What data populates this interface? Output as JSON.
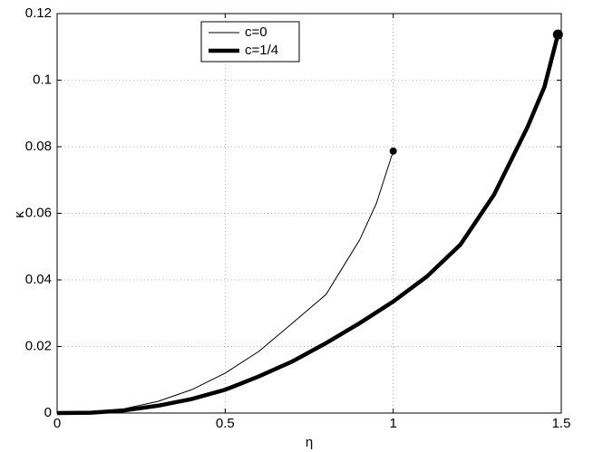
{
  "chart_data": {
    "type": "line",
    "xlabel": "η",
    "ylabel": "κ",
    "xlim": [
      0,
      1.5
    ],
    "ylim": [
      0,
      0.12
    ],
    "xticks": [
      0,
      0.5,
      1,
      1.5
    ],
    "yticks": [
      0,
      0.02,
      0.04,
      0.06,
      0.08,
      0.1,
      0.12
    ],
    "grid": true,
    "legend": "top",
    "series": [
      {
        "name": "c=0",
        "color": "#000000",
        "x": [
          0,
          0.1,
          0.2,
          0.3,
          0.4,
          0.5,
          0.6,
          0.7,
          0.8,
          0.9,
          0.95,
          1.0
        ],
        "values": [
          0,
          0.0002,
          0.0013,
          0.0035,
          0.007,
          0.012,
          0.0185,
          0.027,
          0.0356,
          0.052,
          0.063,
          0.0787
        ]
      },
      {
        "name": "c=1/4",
        "color": "#000000",
        "x": [
          0,
          0.1,
          0.2,
          0.3,
          0.4,
          0.5,
          0.6,
          0.7,
          0.8,
          0.9,
          1.0,
          1.1,
          1.2,
          1.3,
          1.4,
          1.45,
          1.49
        ],
        "values": [
          0,
          0.0001,
          0.0008,
          0.0022,
          0.0042,
          0.007,
          0.011,
          0.0155,
          0.021,
          0.027,
          0.0335,
          0.041,
          0.0506,
          0.0656,
          0.086,
          0.098,
          0.1137
        ]
      }
    ]
  }
}
